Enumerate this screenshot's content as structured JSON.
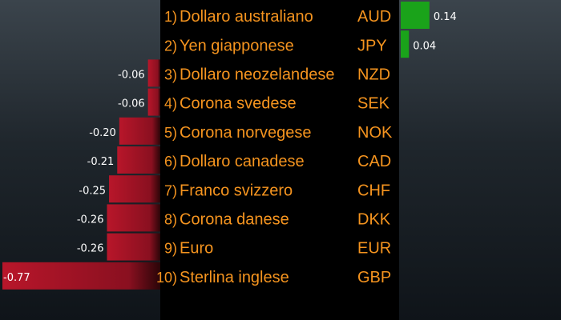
{
  "chart_data": {
    "type": "bar",
    "orientation": "horizontal",
    "ranks": [
      "1)",
      "2)",
      "3)",
      "4)",
      "5)",
      "6)",
      "7)",
      "8)",
      "9)",
      "10)"
    ],
    "categories": [
      "Dollaro australiano",
      "Yen giapponese",
      "Dollaro neozelandese",
      "Corona svedese",
      "Corona norvegese",
      "Dollaro canadese",
      "Franco svizzero",
      "Corona danese",
      "Euro",
      "Sterlina inglese"
    ],
    "codes": [
      "AUD",
      "JPY",
      "NZD",
      "SEK",
      "NOK",
      "CAD",
      "CHF",
      "DKK",
      "EUR",
      "GBP"
    ],
    "values": [
      0.14,
      0.04,
      -0.06,
      -0.06,
      -0.2,
      -0.21,
      -0.25,
      -0.26,
      -0.26,
      -0.77
    ],
    "value_labels": [
      "0.14",
      "0.04",
      "-0.06",
      "-0.06",
      "-0.20",
      "-0.21",
      "-0.25",
      "-0.26",
      "-0.26",
      "-0.77"
    ],
    "colors": {
      "positive": "#1aa31a",
      "negative": "#a3131f",
      "label": "#f5941f",
      "value_text": "#ffffff"
    },
    "xlim": [
      -0.77,
      0.77
    ]
  }
}
